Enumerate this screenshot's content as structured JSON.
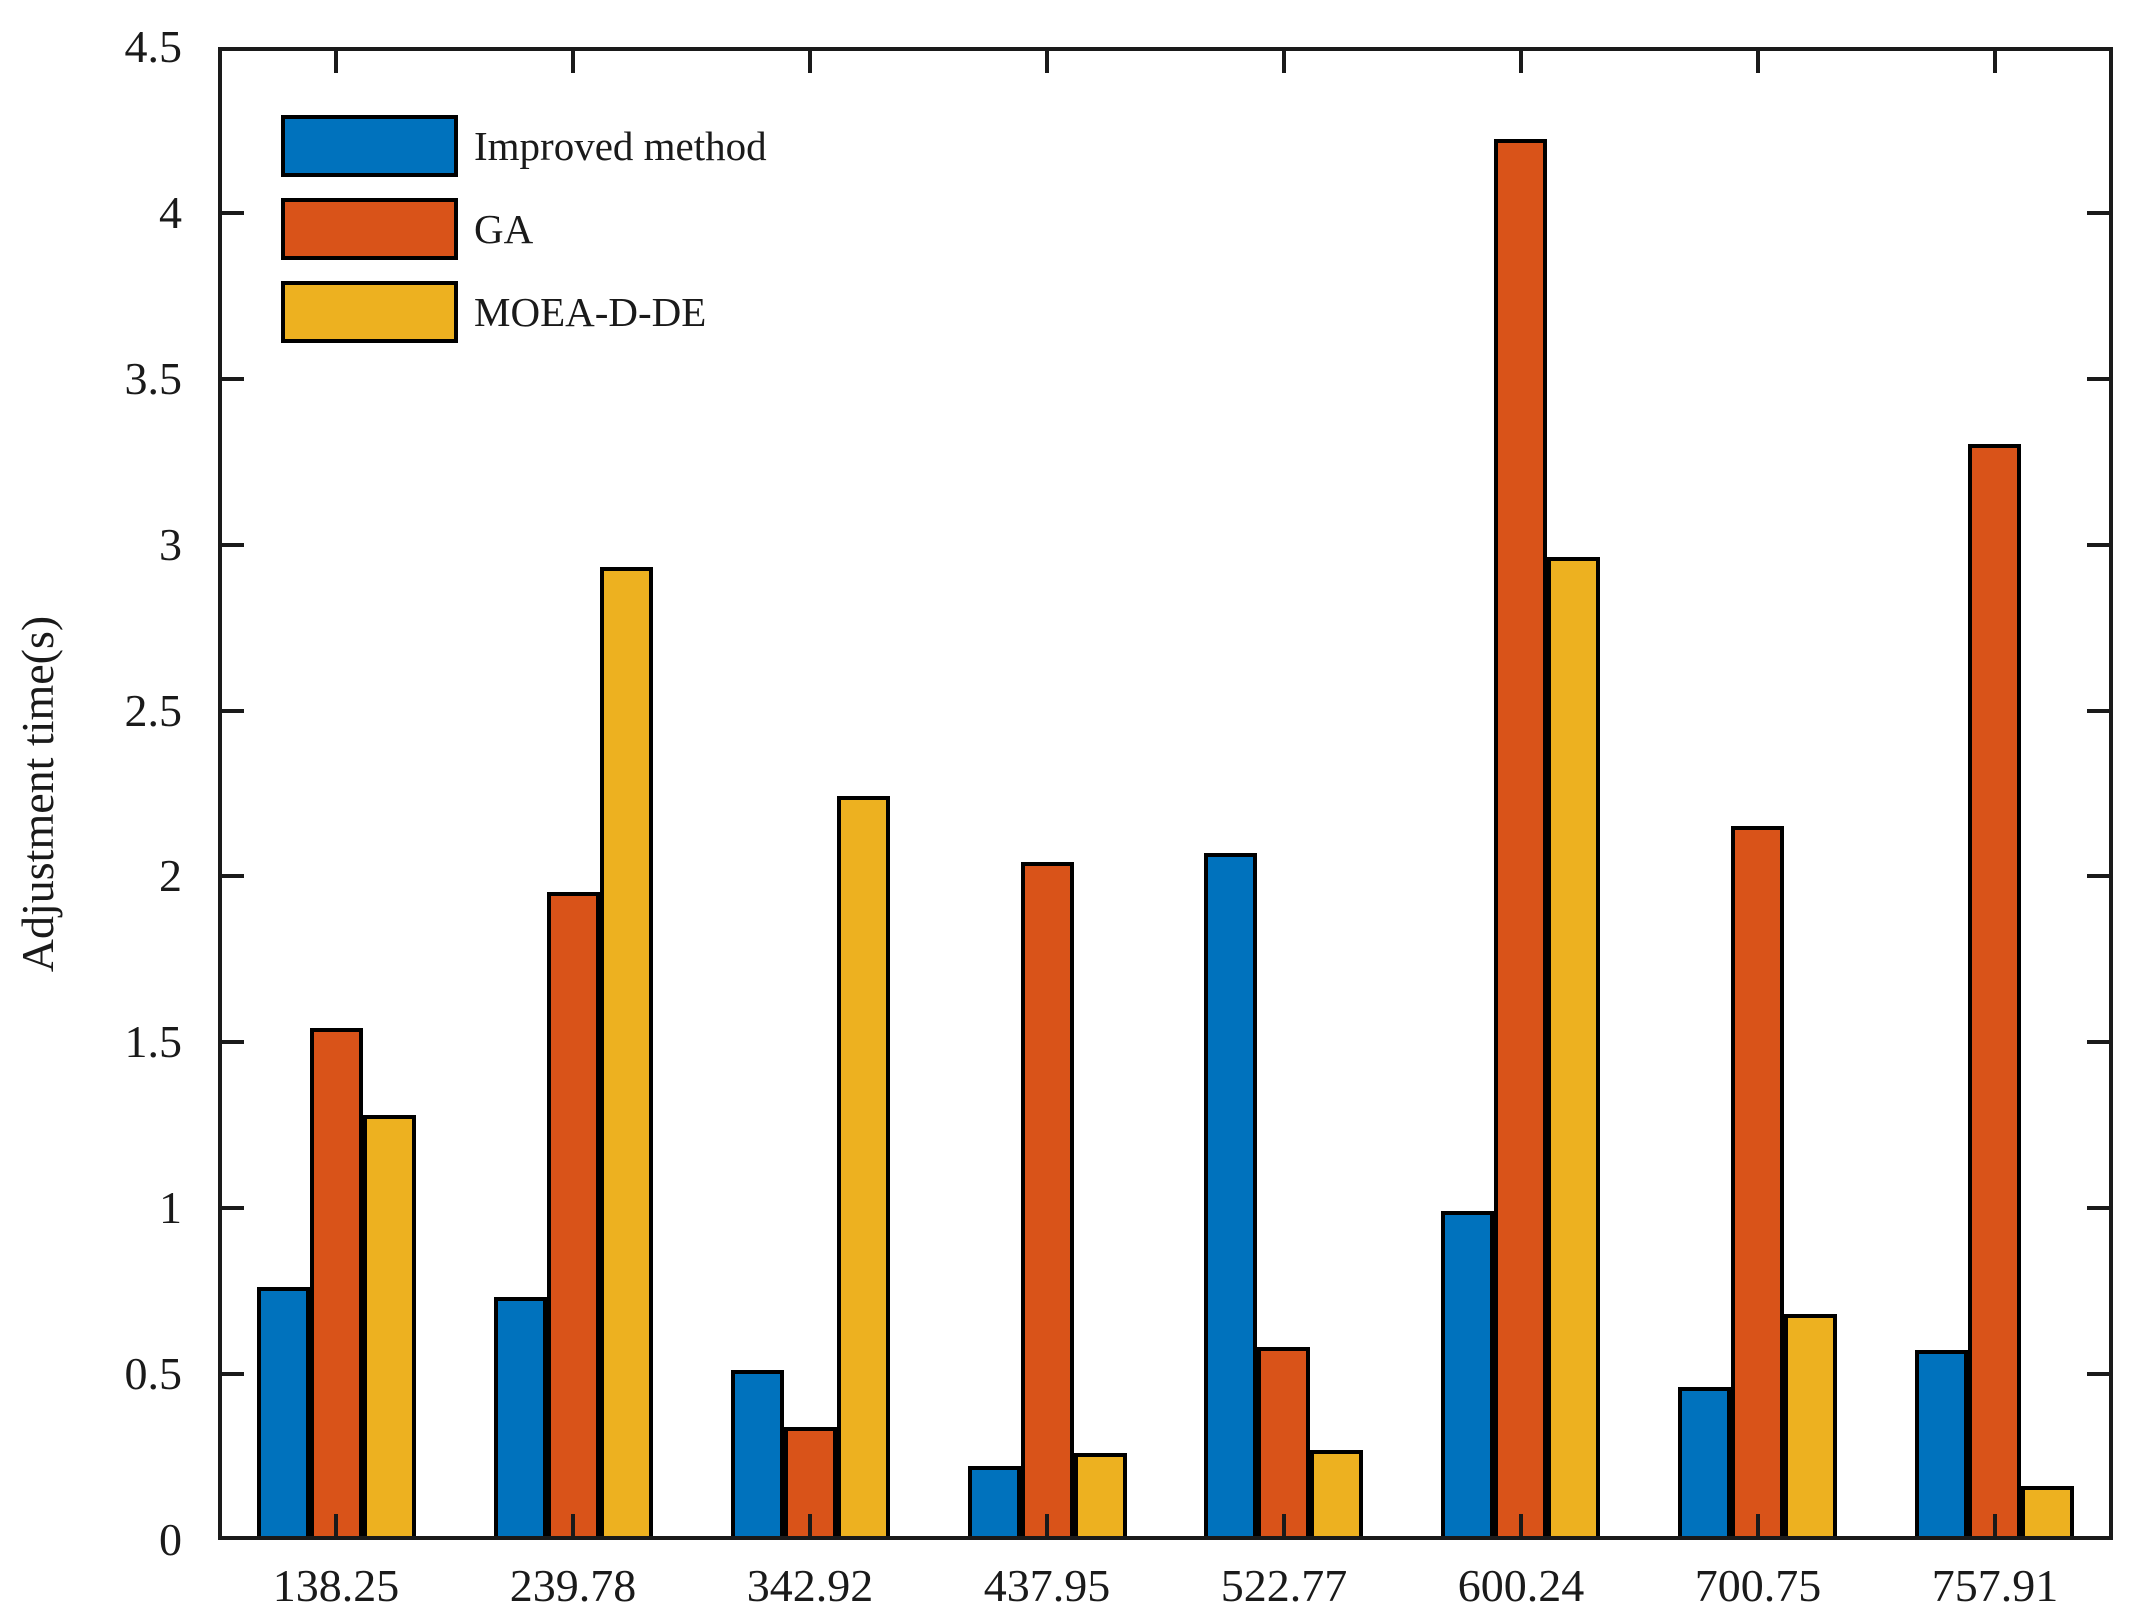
{
  "figure": {
    "background": "#ffffff",
    "frame_color": "#1a1a1a"
  },
  "chart_data": {
    "type": "bar",
    "title": "",
    "xlabel": "",
    "ylabel": "Adjustment time(s)",
    "categories": [
      "138.25",
      "239.78",
      "342.92",
      "437.95",
      "522.77",
      "600.24",
      "700.75",
      "757.91"
    ],
    "series": [
      {
        "name": "Improved method",
        "color": "#0072BD",
        "values": [
          0.75,
          0.72,
          0.5,
          0.21,
          2.06,
          0.98,
          0.45,
          0.56
        ]
      },
      {
        "name": "GA",
        "color": "#D95319",
        "values": [
          1.53,
          1.94,
          0.33,
          2.03,
          0.57,
          4.21,
          2.14,
          3.29
        ]
      },
      {
        "name": "MOEA-D-DE",
        "color": "#EDB120",
        "values": [
          1.27,
          2.92,
          2.23,
          0.25,
          0.26,
          2.95,
          0.67,
          0.15
        ]
      }
    ],
    "ylim": [
      0,
      4.5
    ],
    "yticks": [
      0,
      0.5,
      1,
      1.5,
      2,
      2.5,
      3,
      3.5,
      4,
      4.5
    ],
    "ytick_labels": [
      "0",
      "0.5",
      "1",
      "1.5",
      "2",
      "2.5",
      "3",
      "3.5",
      "4",
      "4.5"
    ],
    "grid": false,
    "legend_position": "top-left-inside",
    "bar_border_color": "#000000",
    "tick_direction": "in"
  }
}
